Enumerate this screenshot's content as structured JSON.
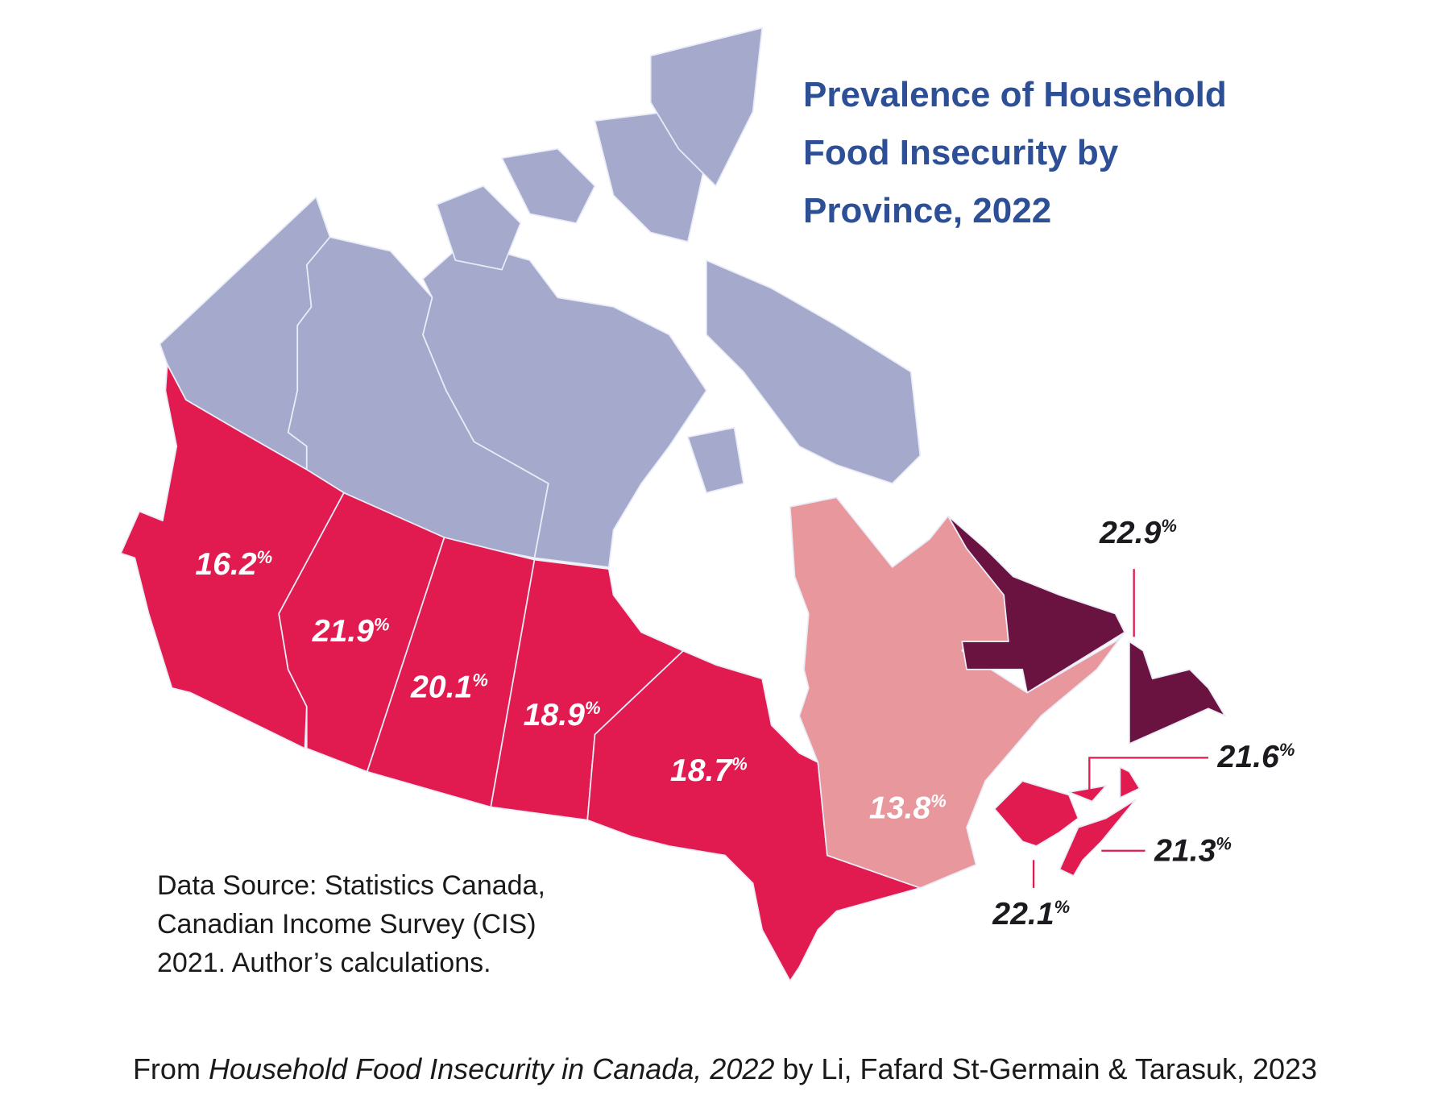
{
  "title": {
    "line1": "Prevalence of Household",
    "line2": "Food Insecurity by",
    "line3": "Province, 2022"
  },
  "source": {
    "line1": "Data Source: Statistics Canada,",
    "line2": "Canadian Income Survey (CIS)",
    "line3": "2021. Author’s calculations."
  },
  "footer": {
    "prefix": "From ",
    "work": "Household Food Insecurity in Canada, 2022",
    "suffix": " by Li, Fafard St-Germain & Tarasuk, 2023"
  },
  "colors": {
    "territories": "#a5aacd",
    "high": "#e11b4f",
    "low": "#e8979c",
    "highest": "#6a1340",
    "title": "#2d4f96",
    "leader": "#e11b4f"
  },
  "chart_data": {
    "type": "choropleth",
    "unit": "%",
    "regions": {
      "bc": {
        "value": "16.2",
        "color": "#e11b4f"
      },
      "ab": {
        "value": "21.9",
        "color": "#e11b4f"
      },
      "sk": {
        "value": "20.1",
        "color": "#e11b4f"
      },
      "mb": {
        "value": "18.9",
        "color": "#e11b4f"
      },
      "on": {
        "value": "18.7",
        "color": "#e11b4f"
      },
      "qc": {
        "value": "13.8",
        "color": "#e8979c"
      },
      "nl": {
        "value": "22.9",
        "color": "#6a1340"
      },
      "pe": {
        "value": "21.6",
        "color": "#e11b4f"
      },
      "ns": {
        "value": "21.3",
        "color": "#e11b4f"
      },
      "nb": {
        "value": "22.1",
        "color": "#e11b4f"
      },
      "territories": {
        "value": null,
        "color": "#a5aacd"
      }
    },
    "pct_sign": "%"
  }
}
